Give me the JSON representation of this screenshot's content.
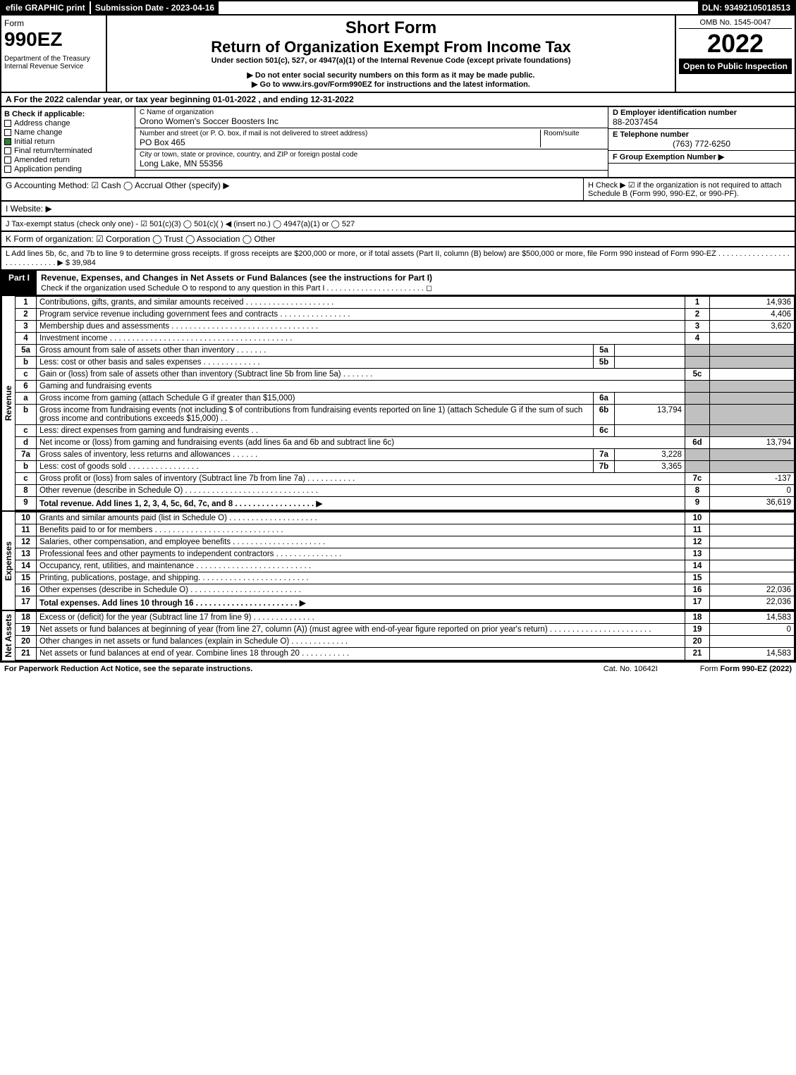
{
  "topbar": {
    "efile": "efile GRAPHIC print",
    "subdate": "Submission Date - 2023-04-16",
    "dln": "DLN: 93492105018513"
  },
  "header": {
    "form_label": "Form",
    "form_num": "990EZ",
    "dept": "Department of the Treasury",
    "irs": "Internal Revenue Service",
    "title1": "Short Form",
    "title2": "Return of Organization Exempt From Income Tax",
    "subtitle": "Under section 501(c), 527, or 4947(a)(1) of the Internal Revenue Code (except private foundations)",
    "note1": "▶ Do not enter social security numbers on this form as it may be made public.",
    "note2": "▶ Go to www.irs.gov/Form990EZ for instructions and the latest information.",
    "omb": "OMB No. 1545-0047",
    "year": "2022",
    "open": "Open to Public Inspection"
  },
  "rowA": "A  For the 2022 calendar year, or tax year beginning 01-01-2022 , and ending 12-31-2022",
  "colB": {
    "label": "B  Check if applicable:",
    "items": [
      "Address change",
      "Name change",
      "Initial return",
      "Final return/terminated",
      "Amended return",
      "Application pending"
    ],
    "checked_idx": 2
  },
  "colC": {
    "name_label": "C Name of organization",
    "name": "Orono Women's Soccer Boosters Inc",
    "addr_label": "Number and street (or P. O. box, if mail is not delivered to street address)",
    "room_label": "Room/suite",
    "addr": "PO Box 465",
    "city_label": "City or town, state or province, country, and ZIP or foreign postal code",
    "city": "Long Lake, MN  55356"
  },
  "colDEF": {
    "d_label": "D Employer identification number",
    "d_val": "88-2037454",
    "e_label": "E Telephone number",
    "e_val": "(763) 772-6250",
    "f_label": "F Group Exemption Number  ▶"
  },
  "rowG": "G Accounting Method:  ☑ Cash  ◯ Accrual  Other (specify) ▶",
  "rowH": "H  Check ▶ ☑ if the organization is not required to attach Schedule B (Form 990, 990-EZ, or 990-PF).",
  "rowI": "I Website: ▶",
  "rowJ": "J Tax-exempt status (check only one) - ☑ 501(c)(3) ◯ 501(c)(  ) ◀ (insert no.) ◯ 4947(a)(1) or ◯ 527",
  "rowK": "K Form of organization:  ☑ Corporation  ◯ Trust  ◯ Association  ◯ Other",
  "rowL": "L Add lines 5b, 6c, and 7b to line 9 to determine gross receipts. If gross receipts are $200,000 or more, or if total assets (Part II, column (B) below) are $500,000 or more, file Form 990 instead of Form 990-EZ . . . . . . . . . . . . . . . . . . . . . . . . . . . . . ▶ $ 39,984",
  "part1": {
    "label": "Part I",
    "title": "Revenue, Expenses, and Changes in Net Assets or Fund Balances (see the instructions for Part I)",
    "check": "Check if the organization used Schedule O to respond to any question in this Part I . . . . . . . . . . . . . . . . . . . . . . . ◻"
  },
  "vert_labels": {
    "rev": "Revenue",
    "exp": "Expenses",
    "na": "Net Assets"
  },
  "lines": [
    {
      "n": "1",
      "d": "Contributions, gifts, grants, and similar amounts received . . . . . . . . . . . . . . . . . . . .",
      "r": "1",
      "v": "14,936"
    },
    {
      "n": "2",
      "d": "Program service revenue including government fees and contracts . . . . . . . . . . . . . . . .",
      "r": "2",
      "v": "4,406"
    },
    {
      "n": "3",
      "d": "Membership dues and assessments . . . . . . . . . . . . . . . . . . . . . . . . . . . . . . . . .",
      "r": "3",
      "v": "3,620"
    },
    {
      "n": "4",
      "d": "Investment income . . . . . . . . . . . . . . . . . . . . . . . . . . . . . . . . . . . . . . . . .",
      "r": "4",
      "v": ""
    },
    {
      "n": "5a",
      "d": "Gross amount from sale of assets other than inventory . . . . . . .",
      "mn": "5a",
      "mv": "",
      "grey": true
    },
    {
      "n": "b",
      "d": "Less: cost or other basis and sales expenses . . . . . . . . . . . . .",
      "mn": "5b",
      "mv": "",
      "grey": true
    },
    {
      "n": "c",
      "d": "Gain or (loss) from sale of assets other than inventory (Subtract line 5b from line 5a) . . . . . . .",
      "r": "5c",
      "v": ""
    },
    {
      "n": "6",
      "d": "Gaming and fundraising events",
      "grey": true
    },
    {
      "n": "a",
      "d": "Gross income from gaming (attach Schedule G if greater than $15,000)",
      "mn": "6a",
      "mv": "",
      "grey": true
    },
    {
      "n": "b",
      "d": "Gross income from fundraising events (not including $                     of contributions from fundraising events reported on line 1) (attach Schedule G if the sum of such gross income and contributions exceeds $15,000)    . .",
      "mn": "6b",
      "mv": "13,794",
      "grey": true
    },
    {
      "n": "c",
      "d": "Less: direct expenses from gaming and fundraising events   . .",
      "mn": "6c",
      "mv": "",
      "grey": true
    },
    {
      "n": "d",
      "d": "Net income or (loss) from gaming and fundraising events (add lines 6a and 6b and subtract line 6c)",
      "r": "6d",
      "v": "13,794"
    },
    {
      "n": "7a",
      "d": "Gross sales of inventory, less returns and allowances . . . . . .",
      "mn": "7a",
      "mv": "3,228",
      "grey": true
    },
    {
      "n": "b",
      "d": "Less: cost of goods sold        . . . . . . . . . . . . . . . .",
      "mn": "7b",
      "mv": "3,365",
      "grey": true
    },
    {
      "n": "c",
      "d": "Gross profit or (loss) from sales of inventory (Subtract line 7b from line 7a) . . . . . . . . . . .",
      "r": "7c",
      "v": "-137"
    },
    {
      "n": "8",
      "d": "Other revenue (describe in Schedule O) . . . . . . . . . . . . . . . . . . . . . . . . . . . . . .",
      "r": "8",
      "v": "0"
    },
    {
      "n": "9",
      "d": "Total revenue. Add lines 1, 2, 3, 4, 5c, 6d, 7c, and 8  . . . . . . . . . . . . . . . . . .  ▶",
      "r": "9",
      "v": "36,619",
      "bold": true
    }
  ],
  "exp_lines": [
    {
      "n": "10",
      "d": "Grants and similar amounts paid (list in Schedule O) . . . . . . . . . . . . . . . . . . . .",
      "r": "10",
      "v": ""
    },
    {
      "n": "11",
      "d": "Benefits paid to or for members     . . . . . . . . . . . . . . . . . . . . . . . . . . . . .",
      "r": "11",
      "v": ""
    },
    {
      "n": "12",
      "d": "Salaries, other compensation, and employee benefits . . . . . . . . . . . . . . . . . . . . .",
      "r": "12",
      "v": ""
    },
    {
      "n": "13",
      "d": "Professional fees and other payments to independent contractors . . . . . . . . . . . . . . .",
      "r": "13",
      "v": ""
    },
    {
      "n": "14",
      "d": "Occupancy, rent, utilities, and maintenance . . . . . . . . . . . . . . . . . . . . . . . . . .",
      "r": "14",
      "v": ""
    },
    {
      "n": "15",
      "d": "Printing, publications, postage, and shipping. . . . . . . . . . . . . . . . . . . . . . . . .",
      "r": "15",
      "v": ""
    },
    {
      "n": "16",
      "d": "Other expenses (describe in Schedule O)    . . . . . . . . . . . . . . . . . . . . . . . . .",
      "r": "16",
      "v": "22,036"
    },
    {
      "n": "17",
      "d": "Total expenses. Add lines 10 through 16    . . . . . . . . . . . . . . . . . . . . . . .  ▶",
      "r": "17",
      "v": "22,036",
      "bold": true
    }
  ],
  "na_lines": [
    {
      "n": "18",
      "d": "Excess or (deficit) for the year (Subtract line 17 from line 9)       . . . . . . . . . . . . . .",
      "r": "18",
      "v": "14,583"
    },
    {
      "n": "19",
      "d": "Net assets or fund balances at beginning of year (from line 27, column (A)) (must agree with end-of-year figure reported on prior year's return) . . . . . . . . . . . . . . . . . . . . . . .",
      "r": "19",
      "v": "0"
    },
    {
      "n": "20",
      "d": "Other changes in net assets or fund balances (explain in Schedule O) . . . . . . . . . . . . .",
      "r": "20",
      "v": ""
    },
    {
      "n": "21",
      "d": "Net assets or fund balances at end of year. Combine lines 18 through 20 . . . . . . . . . . .",
      "r": "21",
      "v": "14,583"
    }
  ],
  "footer": {
    "left": "For Paperwork Reduction Act Notice, see the separate instructions.",
    "mid": "Cat. No. 10642I",
    "right": "Form 990-EZ (2022)"
  }
}
